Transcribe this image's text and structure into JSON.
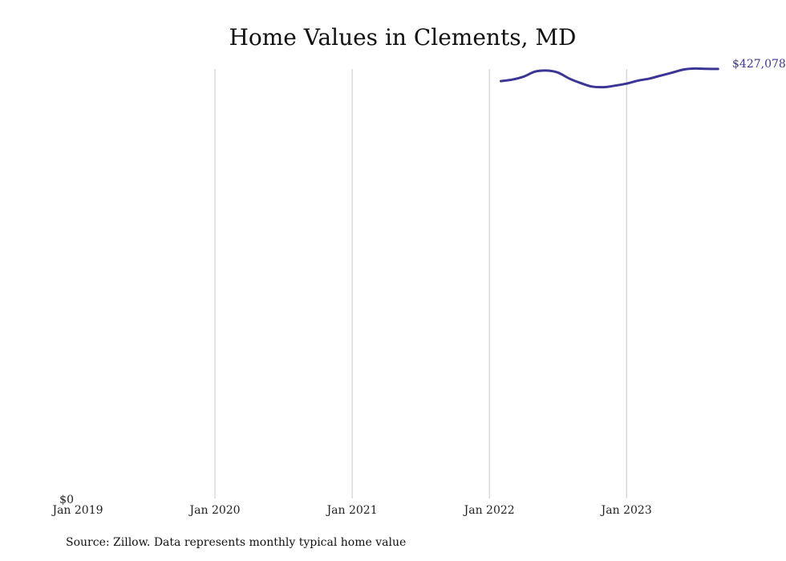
{
  "chart_data": {
    "type": "line",
    "title": "Home Values in Clements, MD",
    "source": "Source: Zillow. Data represents monthly typical home value",
    "x_ticks": [
      {
        "label": "Jan 2019",
        "date": "2019-01"
      },
      {
        "label": "Jan 2020",
        "date": "2020-01"
      },
      {
        "label": "Jan 2021",
        "date": "2021-01"
      },
      {
        "label": "Jan 2022",
        "date": "2022-01"
      },
      {
        "label": "Jan 2023",
        "date": "2023-01"
      }
    ],
    "y_ticks": [
      {
        "label": "$0",
        "value": 0
      }
    ],
    "xlim": [
      "2019-01",
      "2023-12"
    ],
    "ylim": [
      0,
      435000
    ],
    "grid": "vertical",
    "series": [
      {
        "color": "#3b3596",
        "end_label": "$427,078",
        "points": [
          {
            "date": "2022-02",
            "value": 415000
          },
          {
            "date": "2022-03",
            "value": 416500
          },
          {
            "date": "2022-04",
            "value": 419500
          },
          {
            "date": "2022-05",
            "value": 424500
          },
          {
            "date": "2022-06",
            "value": 425500
          },
          {
            "date": "2022-07",
            "value": 423500
          },
          {
            "date": "2022-08",
            "value": 417500
          },
          {
            "date": "2022-09",
            "value": 413000
          },
          {
            "date": "2022-10",
            "value": 409500
          },
          {
            "date": "2022-11",
            "value": 409000
          },
          {
            "date": "2022-12",
            "value": 410500
          },
          {
            "date": "2023-01",
            "value": 412500
          },
          {
            "date": "2023-02",
            "value": 415500
          },
          {
            "date": "2023-03",
            "value": 417500
          },
          {
            "date": "2023-04",
            "value": 420500
          },
          {
            "date": "2023-05",
            "value": 423500
          },
          {
            "date": "2023-06",
            "value": 426500
          },
          {
            "date": "2023-07",
            "value": 427500
          },
          {
            "date": "2023-08",
            "value": 427200
          },
          {
            "date": "2023-09",
            "value": 427078
          }
        ]
      }
    ]
  }
}
